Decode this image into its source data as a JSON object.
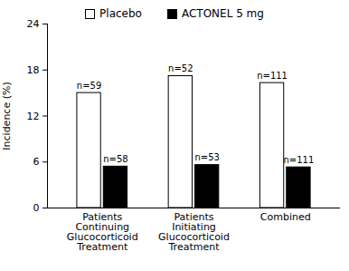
{
  "chart_data": {
    "type": "bar",
    "y_label": "Incidence (%)",
    "categories": [
      "Patients\nContinuing\nGlucocorticoid\nTreatment",
      "Patients\nInitiating\nGlucocorticoid\nTreatment",
      "Combined"
    ],
    "series": [
      {
        "name": "Placebo",
        "color": "#ffffff",
        "values": [
          15.0,
          17.2,
          16.3
        ],
        "bar_labels": [
          "n=59",
          "n=52",
          "n=111"
        ]
      },
      {
        "name": "ACTONEL 5 mg",
        "color": "#000000",
        "values": [
          5.4,
          5.6,
          5.3
        ],
        "bar_labels": [
          "n=58",
          "n=53",
          "n=111"
        ]
      }
    ],
    "ylim": [
      0,
      24
    ],
    "yticks": [
      0,
      6,
      12,
      18,
      24
    ],
    "grid": false,
    "legend": "top"
  }
}
